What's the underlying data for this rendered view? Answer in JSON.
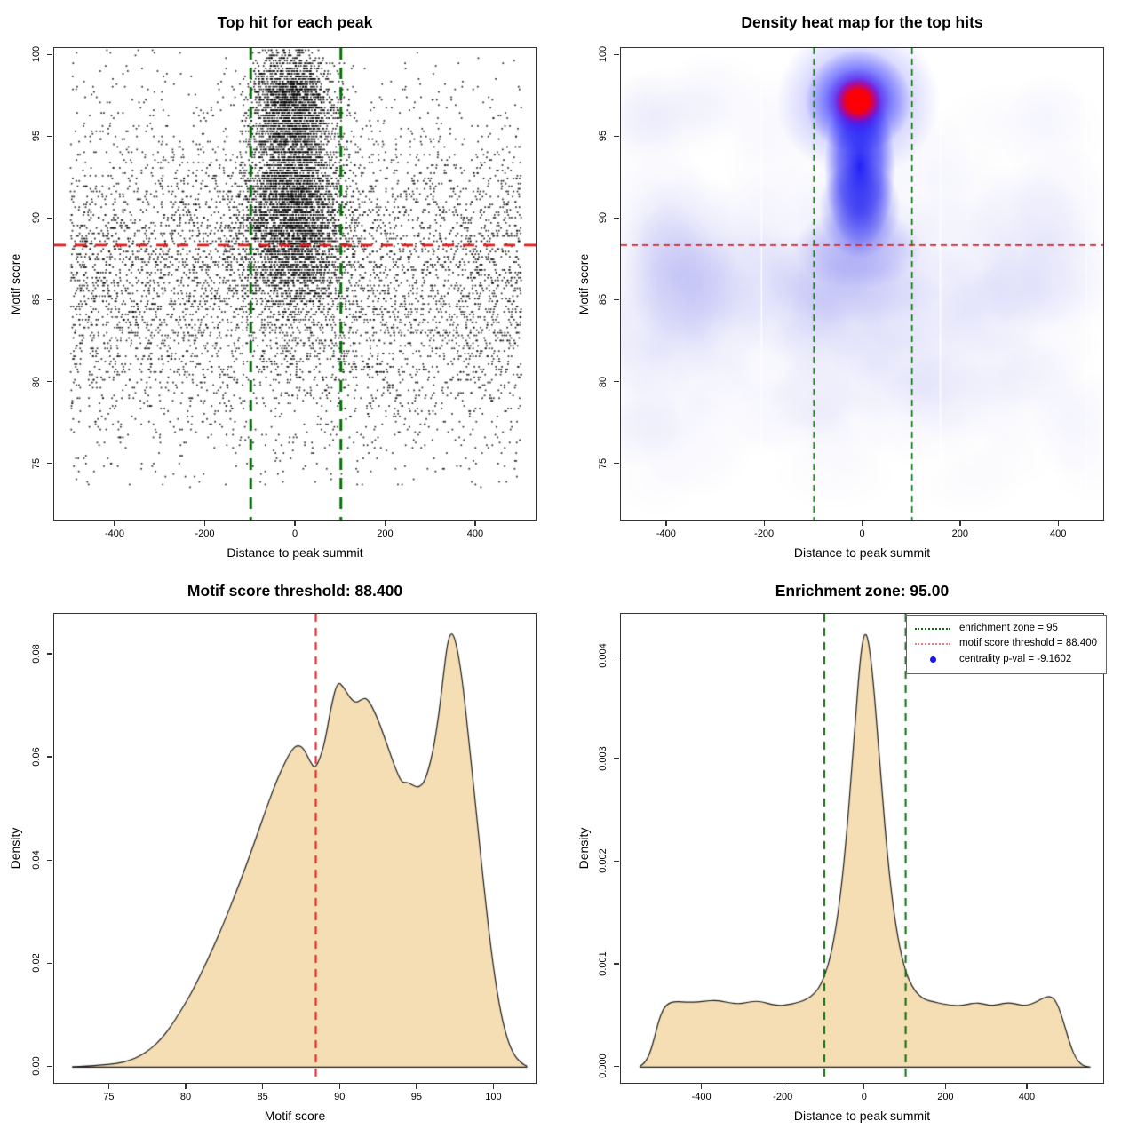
{
  "page": {
    "background": "#ffffff",
    "frame_color": "#333333",
    "point_color": "#000000"
  },
  "colors": {
    "enrichment_green": "#0a6e0a",
    "threshold_red": "#e81c1c",
    "legend_red_dotted": "#f08080",
    "legend_blue_dot": "#1616e8",
    "density_fill": "#f5deb3",
    "density_outline": "#1c1c1c",
    "heat_low": "#ffffff",
    "heat_mid": "#0000ff",
    "heat_high": "#ff0000"
  },
  "chart_data": [
    {
      "id": "top_hits_scatter",
      "type": "scatter",
      "title": "Top hit for each peak",
      "xlabel": "Distance to peak summit",
      "ylabel": "Motif score",
      "xlim": [
        -536,
        536
      ],
      "ylim": [
        71.5,
        100.45
      ],
      "xticks": [
        -400,
        -200,
        0,
        200,
        400
      ],
      "yticks": [
        75,
        80,
        85,
        90,
        95,
        100
      ],
      "grid": false,
      "point_color": "#000000",
      "score_quantum": 0.16,
      "background": {
        "n": 6000,
        "x_range": [
          -500,
          500
        ],
        "y_mean": 86.3,
        "y_sd": 5.4,
        "y_clip": [
          73.6,
          100.4
        ]
      },
      "clusters": [
        {
          "n": 2300,
          "x_mean": -8,
          "x_sd": 45,
          "y_mean": 96.9,
          "y_sd": 1.9,
          "x_clip": [
            -135,
            135
          ],
          "y_clip": [
            89,
            100.4
          ]
        },
        {
          "n": 2100,
          "x_mean": -8,
          "x_sd": 52,
          "y_mean": 91.6,
          "y_sd": 2.2,
          "x_clip": [
            -140,
            140
          ],
          "y_clip": [
            85,
            98
          ]
        },
        {
          "n": 1450,
          "x_mean": -6,
          "x_sd": 62,
          "y_mean": 88.2,
          "y_sd": 2.4,
          "x_clip": [
            -160,
            160
          ],
          "y_clip": [
            73.6,
            95
          ]
        }
      ],
      "vlines": {
        "x": [
          -100,
          100
        ],
        "color": "#0a6e0a",
        "style": "dashed",
        "width": 3
      },
      "hline": {
        "y": 88.4,
        "color": "#e81c1c",
        "style": "dashed",
        "width": 2.6
      }
    },
    {
      "id": "top_hits_density_heatmap",
      "type": "heatmap",
      "title": "Density heat map for the top hits",
      "xlabel": "Distance to peak summit",
      "ylabel": "Motif score",
      "xlim": [
        -494,
        494
      ],
      "ylim": [
        71.5,
        100.45
      ],
      "xticks": [
        -400,
        -200,
        0,
        200,
        400
      ],
      "yticks": [
        75,
        80,
        85,
        90,
        95,
        100
      ],
      "hotspot": {
        "x": -10,
        "y": 97.2
      },
      "ridge": {
        "x": 0,
        "y_range": [
          88,
          96
        ]
      },
      "haze_bands": [
        {
          "y_center": 86.5,
          "intensity": 0.055
        },
        {
          "y_center": 80.2,
          "intensity": 0.04
        },
        {
          "y_center": 96.5,
          "intensity": 0.032
        },
        {
          "y_center": 76.3,
          "intensity": 0.022
        }
      ],
      "white_gridlines_x": [
        -207,
        158,
        456
      ],
      "vlines": {
        "x": [
          -100,
          100
        ],
        "color": "#0a6e0a",
        "style": "dashed",
        "width": 1.6
      },
      "hline": {
        "y": 88.4,
        "color": "#e81c1c",
        "style": "dashed",
        "width": 1.6
      }
    },
    {
      "id": "motif_score_density",
      "type": "area",
      "title": "Motif score threshold: 88.400",
      "xlabel": "Motif score",
      "ylabel": "Density",
      "xlim": [
        71.4,
        102.8
      ],
      "ylim": [
        -0.00338,
        0.0879
      ],
      "xticks": [
        75,
        80,
        85,
        90,
        95,
        100
      ],
      "yticks": [
        0,
        0.02,
        0.04,
        0.06,
        0.08
      ],
      "ytick_labels": [
        "0.00",
        "0.02",
        "0.04",
        "0.06",
        "0.08"
      ],
      "fill_color": "#f5deb3",
      "line_color": "#1c1c1c",
      "vlines": {
        "x": [
          88.4
        ],
        "color": "#e81c1c",
        "style": "dashed",
        "width": 2
      },
      "curve": {
        "x": [
          72.6,
          73.5,
          74.5,
          75.5,
          76.3,
          77,
          77.7,
          78.4,
          79,
          79.6,
          80.3,
          81,
          81.7,
          82.4,
          83.1,
          83.8,
          84.5,
          85.2,
          85.8,
          86.3,
          86.8,
          87.2,
          87.6,
          88,
          88.35,
          88.7,
          89,
          89.4,
          89.8,
          90.2,
          90.6,
          91,
          91.35,
          91.7,
          92.1,
          92.6,
          93.1,
          93.6,
          94,
          94.35,
          94.7,
          95.1,
          95.5,
          96,
          96.4,
          96.7,
          96.95,
          97.2,
          97.5,
          97.9,
          98.3,
          98.8,
          99.3,
          99.8,
          100.3,
          100.8,
          101.3,
          101.8,
          102.1
        ],
        "y": [
          0.0001,
          0.0002,
          0.0004,
          0.0007,
          0.0013,
          0.0022,
          0.0036,
          0.0056,
          0.008,
          0.0108,
          0.0143,
          0.0185,
          0.023,
          0.0278,
          0.033,
          0.0385,
          0.0443,
          0.0503,
          0.0551,
          0.0585,
          0.0614,
          0.0625,
          0.0619,
          0.0594,
          0.0578,
          0.0601,
          0.0632,
          0.07,
          0.0748,
          0.0738,
          0.0716,
          0.0706,
          0.0713,
          0.0716,
          0.0697,
          0.0662,
          0.0619,
          0.0577,
          0.0551,
          0.0553,
          0.0546,
          0.0542,
          0.0554,
          0.0608,
          0.0684,
          0.0762,
          0.0822,
          0.0845,
          0.0827,
          0.0757,
          0.0648,
          0.0503,
          0.0357,
          0.0224,
          0.0122,
          0.0057,
          0.0022,
          0.0007,
          0.0002
        ]
      }
    },
    {
      "id": "summit_distance_density",
      "type": "area",
      "title": "Enrichment zone: 95.00",
      "xlabel": "Distance to peak summit",
      "ylabel": "Density",
      "xlim": [
        -600,
        590
      ],
      "ylim": [
        -0.00017,
        0.00442
      ],
      "xticks": [
        -400,
        -200,
        0,
        200,
        400
      ],
      "yticks": [
        0,
        0.001,
        0.002,
        0.003,
        0.004
      ],
      "ytick_labels": [
        "0.000",
        "0.001",
        "0.002",
        "0.003",
        "0.004"
      ],
      "fill_color": "#f5deb3",
      "line_color": "#1c1c1c",
      "vlines": {
        "x": [
          -100,
          100
        ],
        "color": "#0a6e0a",
        "style": "dashed",
        "width": 2
      },
      "curve": {
        "x": [
          -553,
          -542,
          -530,
          -518,
          -506,
          -494,
          -482,
          -468,
          -450,
          -430,
          -410,
          -390,
          -370,
          -350,
          -330,
          -310,
          -290,
          -270,
          -250,
          -230,
          -210,
          -190,
          -170,
          -150,
          -132,
          -115,
          -100,
          -86,
          -72,
          -58,
          -45,
          -33,
          -22,
          -12,
          -4,
          3,
          10,
          19,
          30,
          42,
          55,
          69,
          84,
          99,
          115,
          132,
          150,
          170,
          190,
          210,
          230,
          250,
          270,
          290,
          310,
          330,
          350,
          370,
          390,
          410,
          428,
          445,
          458,
          470,
          482,
          494,
          506,
          518,
          530,
          542,
          553
        ],
        "y": [
          1e-05,
          4e-05,
          0.00012,
          0.00028,
          0.00047,
          0.00058,
          0.000625,
          0.00064,
          0.000638,
          0.000632,
          0.000638,
          0.000645,
          0.000652,
          0.000642,
          0.000625,
          0.000618,
          0.00063,
          0.000645,
          0.000635,
          0.000612,
          0.0006,
          0.000608,
          0.000625,
          0.00065,
          0.00069,
          0.00076,
          0.00088,
          0.00106,
          0.00134,
          0.00175,
          0.00228,
          0.00288,
          0.00348,
          0.00397,
          0.0042,
          0.00423,
          0.00412,
          0.00382,
          0.0033,
          0.00268,
          0.00207,
          0.00156,
          0.00119,
          0.00094,
          0.00079,
          0.0007,
          0.000655,
          0.000635,
          0.000618,
          0.000605,
          0.000598,
          0.00061,
          0.000628,
          0.000618,
          0.0006,
          0.000612,
          0.00063,
          0.000618,
          0.0006,
          0.000615,
          0.000652,
          0.000688,
          0.00069,
          0.00064,
          0.00052,
          0.00036,
          0.0002,
          9e-05,
          3e-05,
          8e-06,
          1e-06
        ]
      },
      "legend": {
        "border_color": "#666666",
        "items": [
          {
            "label": "enrichment zone = 95",
            "swatch": "dotted-line",
            "color": "#0a6e0a"
          },
          {
            "label": "motif score threshold = 88.400",
            "swatch": "dotted-line",
            "color": "#f08080"
          },
          {
            "label": "centrality p-val = -9.1602",
            "swatch": "dot",
            "color": "#1616e8"
          }
        ]
      }
    }
  ]
}
